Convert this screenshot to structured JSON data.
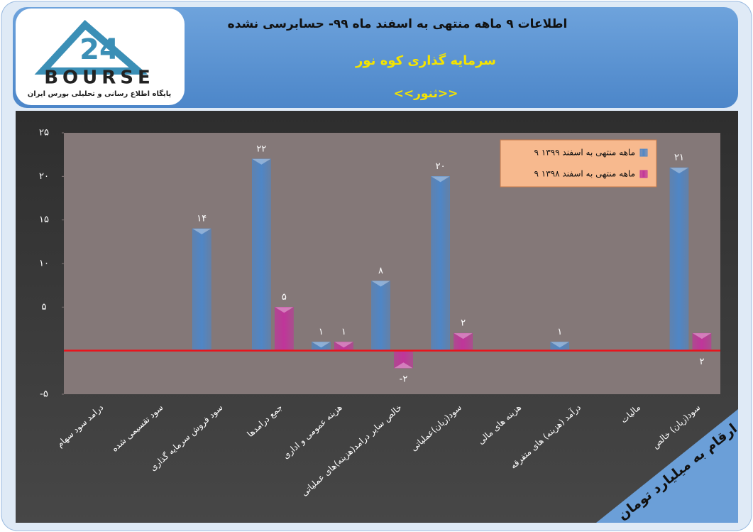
{
  "header": {
    "title": "اطلاعات ۹ ماهه منتهی به اسفند ماه ۹۹- حسابرسی نشده",
    "subtitle": "سرمایه گذاری کوه نور",
    "ticker": "<<ثنور>>"
  },
  "logo": {
    "number": "24",
    "brand": "BOURSE",
    "tagline": "پایگاه اطلاع رسانی و تحلیلی بورس ایران"
  },
  "note": "ارقام به میلیارد تومان",
  "chart_data": {
    "type": "bar",
    "categories": [
      "درامد سود سهام",
      "سود تقسیمی شده",
      "سود فروش سرمایه گذاری",
      "جمع درامدها",
      "هزینه عمومی و اداری",
      "خالص سایر درامد(هزینه)های عملیاتی",
      "سود(زیان)عملیاتی",
      "هزینه های مالی",
      "درآمد (هزینه) های متفرقه",
      "مالیات",
      "سود(زیان) خالص"
    ],
    "series": [
      {
        "name": "۹ ماهه منتهی به اسفند ۱۳۹۹",
        "color": "#4f86c6",
        "values": [
          0,
          0,
          14,
          22,
          1,
          8,
          20,
          0,
          1,
          0,
          21
        ],
        "value_labels": [
          null,
          null,
          "۱۴",
          "۲۲",
          "۱",
          "۸",
          "۲۰",
          null,
          "۱",
          null,
          "۲۱"
        ]
      },
      {
        "name": "۹ ماهه منتهی به اسفند ۱۳۹۸",
        "color": "#c0359a",
        "values": [
          0,
          0,
          0,
          5,
          1,
          -2,
          2,
          0,
          0,
          0,
          2
        ],
        "value_labels": [
          null,
          null,
          null,
          "۵",
          "۱",
          "-۲",
          "۲",
          null,
          null,
          null,
          "۲"
        ]
      }
    ],
    "ylim": [
      -5,
      25
    ],
    "yticks": [
      {
        "value": -5,
        "label": "-۵"
      },
      {
        "value": 5,
        "label": "۵"
      },
      {
        "value": 10,
        "label": "۱۰"
      },
      {
        "value": 15,
        "label": "۱۵"
      },
      {
        "value": 20,
        "label": "۲۰"
      },
      {
        "value": 25,
        "label": "۲۵"
      }
    ],
    "zero_line_color": "#e8141c"
  }
}
